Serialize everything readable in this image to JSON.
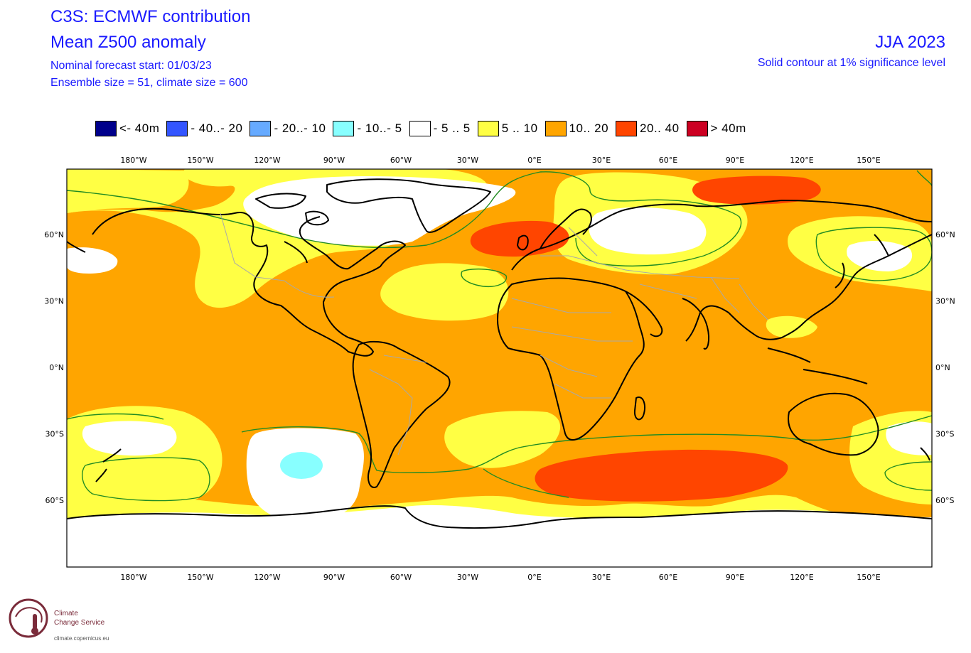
{
  "header": {
    "title_line1": "C3S: ECMWF contribution",
    "title_line2": "Mean Z500 anomaly",
    "forecast_start": "Nominal forecast start: 01/03/23",
    "ensemble": "Ensemble size = 51, climate size = 600",
    "season": "JJA 2023",
    "significance": "Solid contour at 1% significance level"
  },
  "legend": [
    {
      "label": "<- 40m",
      "color": "#00008b"
    },
    {
      "label": "- 40..- 20",
      "color": "#3355ff"
    },
    {
      "label": "- 20..- 10",
      "color": "#66aaff"
    },
    {
      "label": "- 10..- 5",
      "color": "#88ffff"
    },
    {
      "label": "- 5 .. 5",
      "color": "#ffffff"
    },
    {
      "label": "5 .. 10",
      "color": "#ffff44"
    },
    {
      "label": "10.. 20",
      "color": "#ffa500"
    },
    {
      "label": "20.. 40",
      "color": "#ff4500"
    },
    {
      "label": ">  40m",
      "color": "#cc0022"
    }
  ],
  "axes": {
    "lon_ticks": [
      "180°W",
      "150°W",
      "120°W",
      "90°W",
      "60°W",
      "30°W",
      "0°E",
      "30°E",
      "60°E",
      "90°E",
      "120°E",
      "150°E"
    ],
    "lat_ticks": [
      "60°N",
      "30°N",
      "0°N",
      "30°S",
      "60°S"
    ]
  },
  "logo": {
    "line1": "Climate",
    "line2": "Change Service",
    "url": "climate.copernicus.eu"
  }
}
